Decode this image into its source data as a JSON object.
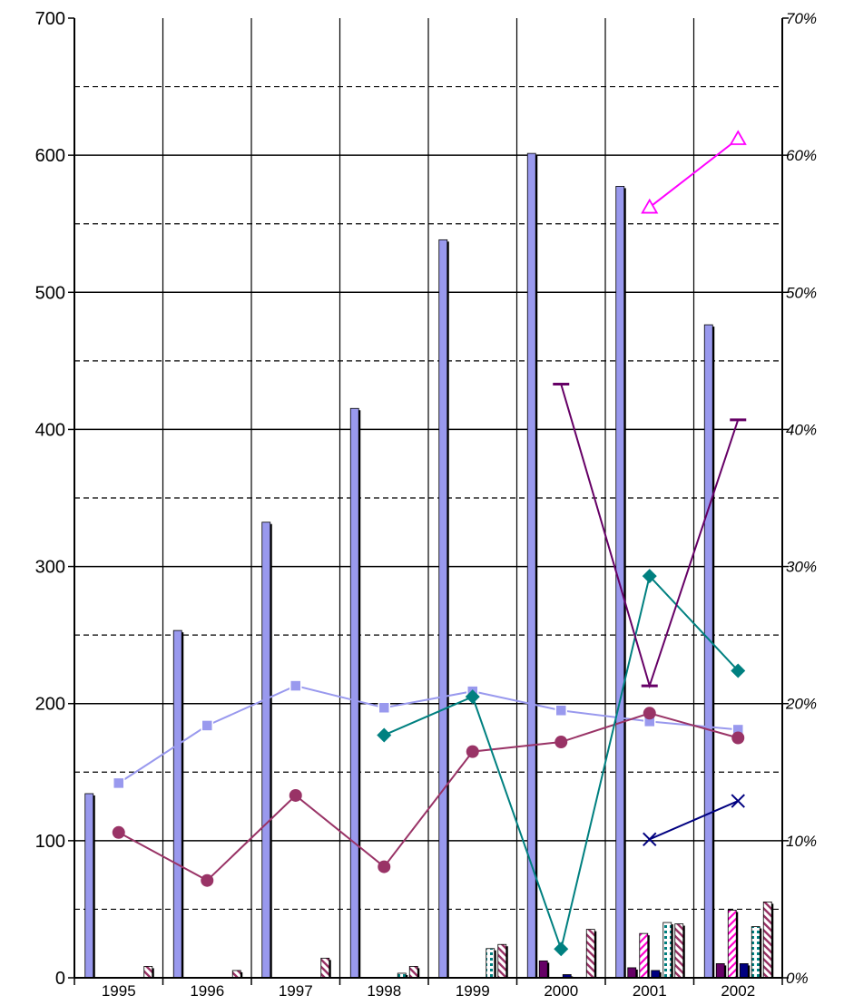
{
  "chart_data": {
    "type": "bar",
    "title": "",
    "xlabel": "",
    "ylabel": "",
    "categories": [
      "1995",
      "1996",
      "1997",
      "1998",
      "1999",
      "2000",
      "2001",
      "2002"
    ],
    "ylim": [
      0,
      700
    ],
    "y2lim": [
      0,
      0.7
    ],
    "yticks": [
      "0",
      "100",
      "200",
      "300",
      "400",
      "500",
      "600",
      "700"
    ],
    "y2ticks": [
      "0%",
      "10%",
      "20%",
      "30%",
      "40%",
      "50%",
      "60%",
      "70%"
    ],
    "grid": true,
    "legend": "none",
    "bar_series": [
      {
        "color": "#9999ee",
        "pattern": "solid",
        "values": [
          133,
          252,
          331,
          414,
          537,
          600,
          576,
          475
        ]
      },
      {
        "color": "#660066",
        "pattern": "solid",
        "values": [
          0,
          0,
          0,
          0,
          0,
          11,
          6,
          9
        ]
      },
      {
        "color": "#ff00cc",
        "pattern": "diag-magenta",
        "values": [
          0,
          0,
          0,
          0,
          0,
          0,
          31,
          48
        ]
      },
      {
        "color": "#000080",
        "pattern": "solid",
        "values": [
          0,
          0,
          0,
          0,
          0,
          1,
          4,
          9
        ]
      },
      {
        "color": "#008080",
        "pattern": "dots-teal",
        "values": [
          0,
          0,
          0,
          2,
          20,
          0,
          39,
          36
        ]
      },
      {
        "color": "#993366",
        "pattern": "diag-maroon",
        "values": [
          7,
          4,
          13,
          7,
          23,
          34,
          38,
          54
        ]
      }
    ],
    "line_series": [
      {
        "color": "#9999ee",
        "marker": "square",
        "values": [
          0.142,
          0.184,
          0.213,
          0.197,
          0.209,
          0.195,
          0.187,
          0.181
        ]
      },
      {
        "color": "#993366",
        "marker": "circle",
        "values": [
          0.106,
          0.071,
          0.133,
          0.081,
          0.165,
          0.172,
          0.193,
          0.175
        ]
      },
      {
        "color": "#008080",
        "marker": "diamond",
        "values": [
          null,
          null,
          null,
          0.177,
          0.205,
          0.021,
          0.293,
          0.224
        ]
      },
      {
        "color": "#660066",
        "marker": "dash",
        "values": [
          null,
          null,
          null,
          null,
          null,
          0.433,
          0.213,
          0.407
        ]
      },
      {
        "color": "#ff00ff",
        "marker": "triangle",
        "values": [
          null,
          null,
          null,
          null,
          null,
          null,
          0.562,
          0.612
        ]
      },
      {
        "color": "#000080",
        "marker": "x",
        "values": [
          null,
          null,
          null,
          null,
          null,
          null,
          0.101,
          0.129
        ]
      }
    ]
  }
}
